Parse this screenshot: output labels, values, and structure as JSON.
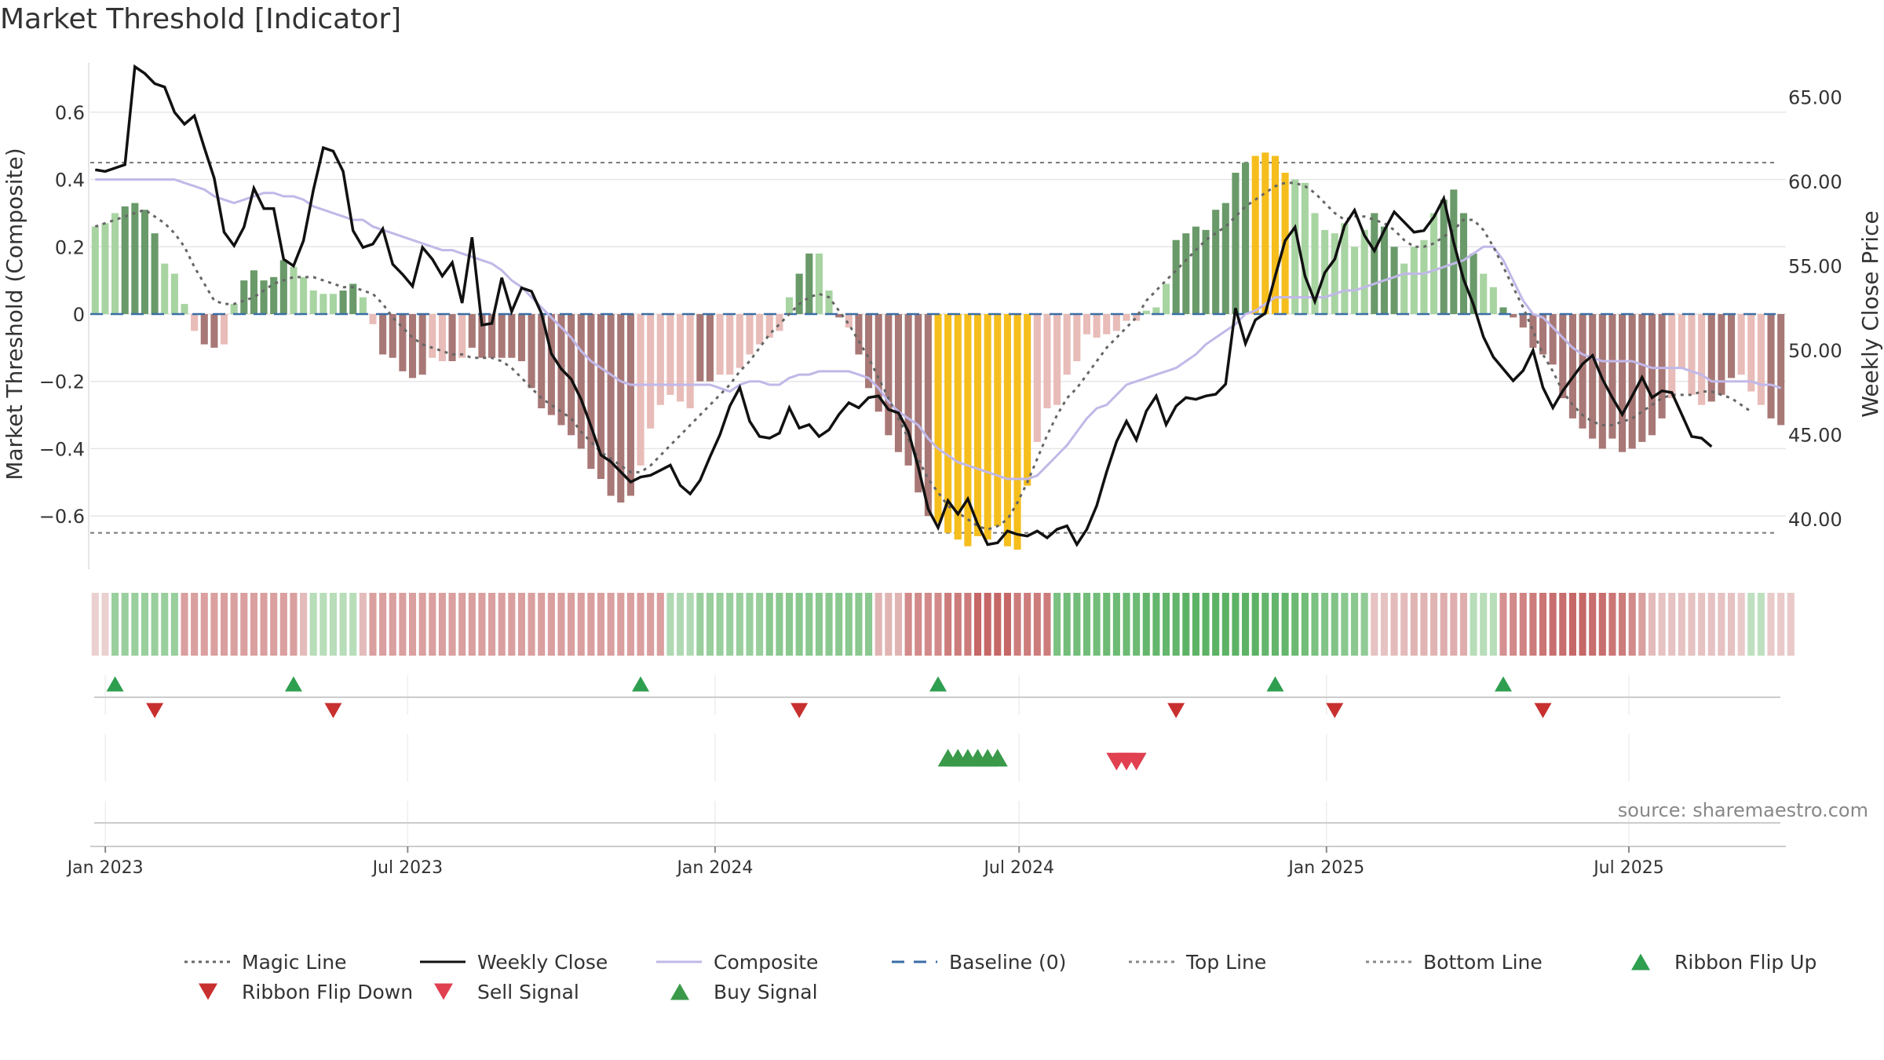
{
  "title": "Market Threshold [Indicator]",
  "source": "source: sharemaestro.com",
  "colors": {
    "bar_pos_strong": "#6a9a6a",
    "bar_pos_weak": "#a8d4a2",
    "bar_neg_strong": "#a87876",
    "bar_neg_weak": "#e8bcb8",
    "bar_extreme": "#f5be1d",
    "close": "#111111",
    "composite": "#c1b8e8",
    "magic": "#666666",
    "baseline": "#3a6ea5",
    "threshold": "#777777",
    "signal_up": "#2e9e4f",
    "signal_down": "#d63a3a"
  },
  "chart_data": {
    "type": "bar",
    "title": "Market Threshold [Indicator]",
    "ylabel": "Market Threshold (Composite)",
    "y2label": "Weekly Close Price",
    "ylim": [
      -0.77,
      0.77
    ],
    "y2lim": [
      36.8,
      67.5
    ],
    "yticks": [
      {
        "v": 0.6,
        "label": "0.6"
      },
      {
        "v": 0.4,
        "label": "0.4"
      },
      {
        "v": 0.2,
        "label": "0.2"
      },
      {
        "v": 0.0,
        "label": "0"
      },
      {
        "v": -0.2,
        "label": "−0.2"
      },
      {
        "v": -0.4,
        "label": "−0.4"
      },
      {
        "v": -0.6,
        "label": "−0.6"
      }
    ],
    "y2ticks": [
      {
        "v": 65,
        "label": "65.00"
      },
      {
        "v": 60,
        "label": "60.00"
      },
      {
        "v": 55,
        "label": "55.00"
      },
      {
        "v": 50,
        "label": "50.00"
      },
      {
        "v": 45,
        "label": "45.00"
      },
      {
        "v": 40,
        "label": "40.00"
      }
    ],
    "xticks": [
      {
        "date": "2023-01-01",
        "label": "Jan 2023"
      },
      {
        "date": "2023-07-01",
        "label": "Jul 2023"
      },
      {
        "date": "2024-01-01",
        "label": "Jan 2024"
      },
      {
        "date": "2024-07-01",
        "label": "Jul 2024"
      },
      {
        "date": "2025-01-01",
        "label": "Jan 2025"
      },
      {
        "date": "2025-07-01",
        "label": "Jul 2025"
      }
    ],
    "x_start": "2022-12-23",
    "x_end": "2025-10-03",
    "top_line": 0.45,
    "bottom_line": -0.65,
    "baseline": 0,
    "bars": [
      0.26,
      0.27,
      0.3,
      0.32,
      0.33,
      0.31,
      0.24,
      0.15,
      0.12,
      0.03,
      -0.05,
      -0.09,
      -0.1,
      -0.09,
      0.03,
      0.1,
      0.13,
      0.1,
      0.11,
      0.16,
      0.14,
      0.11,
      0.07,
      0.06,
      0.06,
      0.07,
      0.09,
      0.05,
      -0.03,
      -0.12,
      -0.13,
      -0.17,
      -0.19,
      -0.18,
      -0.13,
      -0.14,
      -0.14,
      -0.13,
      -0.1,
      -0.13,
      -0.13,
      -0.13,
      -0.13,
      -0.14,
      -0.22,
      -0.28,
      -0.3,
      -0.33,
      -0.36,
      -0.4,
      -0.46,
      -0.49,
      -0.54,
      -0.56,
      -0.54,
      -0.45,
      -0.34,
      -0.27,
      -0.24,
      -0.26,
      -0.28,
      -0.2,
      -0.2,
      -0.18,
      -0.18,
      -0.16,
      -0.12,
      -0.09,
      -0.07,
      -0.05,
      0.05,
      0.12,
      0.18,
      0.18,
      0.07,
      -0.01,
      -0.04,
      -0.12,
      -0.22,
      -0.29,
      -0.36,
      -0.41,
      -0.45,
      -0.53,
      -0.6,
      -0.62,
      -0.65,
      -0.67,
      -0.69,
      -0.66,
      -0.67,
      -0.63,
      -0.69,
      -0.7,
      -0.51,
      -0.38,
      -0.28,
      -0.27,
      -0.18,
      -0.14,
      -0.06,
      -0.07,
      -0.06,
      -0.05,
      -0.02,
      -0.02,
      0.01,
      0.02,
      0.09,
      0.22,
      0.24,
      0.26,
      0.25,
      0.31,
      0.33,
      0.42,
      0.45,
      0.47,
      0.48,
      0.47,
      0.42,
      0.4,
      0.39,
      0.3,
      0.25,
      0.24,
      0.27,
      0.2,
      0.25,
      0.3,
      0.26,
      0.2,
      0.15,
      0.2,
      0.22,
      0.3,
      0.34,
      0.37,
      0.3,
      0.18,
      0.12,
      0.08,
      0.02,
      -0.01,
      -0.04,
      -0.1,
      -0.12,
      -0.15,
      -0.25,
      -0.31,
      -0.34,
      -0.37,
      -0.4,
      -0.37,
      -0.41,
      -0.4,
      -0.38,
      -0.36,
      -0.31,
      -0.25,
      -0.16,
      -0.24,
      -0.27,
      -0.26,
      -0.24,
      -0.19,
      -0.18,
      -0.23,
      -0.27,
      -0.31,
      -0.33
    ],
    "bar_colors": [
      "w",
      "w",
      "w",
      "s",
      "s",
      "s",
      "s",
      "w",
      "w",
      "w",
      "w",
      "s",
      "s",
      "w",
      "w",
      "s",
      "s",
      "s",
      "s",
      "s",
      "w",
      "w",
      "w",
      "w",
      "w",
      "s",
      "s",
      "w",
      "w",
      "s",
      "s",
      "s",
      "s",
      "s",
      "w",
      "w",
      "s",
      "w",
      "s",
      "s",
      "s",
      "s",
      "s",
      "s",
      "s",
      "s",
      "s",
      "s",
      "s",
      "s",
      "s",
      "s",
      "s",
      "s",
      "s",
      "w",
      "w",
      "w",
      "w",
      "w",
      "w",
      "s",
      "s",
      "w",
      "w",
      "w",
      "w",
      "w",
      "w",
      "w",
      "w",
      "s",
      "s",
      "w",
      "w",
      "s",
      "w",
      "s",
      "s",
      "s",
      "s",
      "s",
      "s",
      "s",
      "s",
      "x",
      "x",
      "x",
      "x",
      "x",
      "x",
      "x",
      "x",
      "x",
      "x",
      "w",
      "w",
      "w",
      "w",
      "w",
      "w",
      "w",
      "w",
      "w",
      "w",
      "w",
      "w",
      "w",
      "w",
      "s",
      "s",
      "s",
      "s",
      "s",
      "s",
      "s",
      "s",
      "x",
      "x",
      "x",
      "x",
      "w",
      "w",
      "w",
      "w",
      "w",
      "w",
      "w",
      "w",
      "s",
      "s",
      "s",
      "w",
      "w",
      "w",
      "w",
      "s",
      "s",
      "s",
      "s",
      "w",
      "w",
      "s",
      "s",
      "s",
      "s",
      "s",
      "s",
      "s",
      "s",
      "s",
      "s",
      "s",
      "s",
      "s",
      "s",
      "s",
      "s",
      "s",
      "w",
      "w",
      "w",
      "w",
      "s",
      "s",
      "s",
      "w",
      "w",
      "w",
      "s",
      "s",
      "s"
    ],
    "close": [
      60.7,
      60.6,
      60.8,
      61.0,
      66.8,
      66.4,
      65.8,
      65.6,
      64.1,
      63.4,
      63.9,
      62.0,
      60.2,
      57.0,
      56.2,
      57.3,
      59.6,
      58.4,
      58.4,
      55.4,
      55.0,
      56.5,
      59.5,
      62.0,
      61.8,
      60.6,
      57.1,
      56.1,
      56.3,
      57.2,
      55.1,
      54.5,
      53.8,
      56.1,
      55.4,
      54.4,
      55.2,
      52.8,
      56.7,
      51.5,
      51.6,
      54.3,
      52.3,
      53.7,
      53.5,
      52.2,
      49.8,
      48.9,
      48.3,
      47.1,
      45.5,
      43.8,
      43.4,
      42.8,
      42.2,
      42.5,
      42.6,
      42.9,
      43.2,
      42.0,
      41.5,
      42.3,
      43.7,
      45.0,
      46.7,
      47.8,
      45.8,
      44.9,
      44.8,
      45.1,
      46.6,
      45.4,
      45.6,
      44.9,
      45.3,
      46.2,
      46.9,
      46.6,
      47.2,
      47.3,
      46.5,
      46.3,
      45.2,
      43.1,
      40.6,
      39.5,
      41.1,
      40.3,
      41.2,
      39.7,
      38.5,
      38.6,
      39.3,
      39.1,
      39.0,
      39.3,
      38.9,
      39.4,
      39.6,
      38.5,
      39.4,
      40.8,
      42.8,
      44.6,
      45.8,
      44.7,
      46.4,
      47.3,
      45.6,
      46.7,
      47.2,
      47.1,
      47.3,
      47.4,
      48.0,
      52.5,
      50.4,
      51.8,
      52.2,
      54.4,
      56.5,
      57.3,
      54.4,
      52.9,
      54.6,
      55.4,
      57.4,
      58.3,
      56.8,
      55.9,
      57.1,
      58.2,
      57.6,
      57.0,
      57.1,
      57.9,
      59.0,
      56.4,
      54.2,
      52.7,
      50.8,
      49.6,
      48.9,
      48.2,
      48.8,
      50.0,
      47.8,
      46.6,
      47.6,
      48.4,
      49.2,
      49.7,
      48.3,
      47.2,
      46.2,
      47.3,
      48.4,
      47.2,
      47.6,
      47.5,
      46.2,
      44.9,
      44.8,
      44.3
    ],
    "composite": [
      0.4,
      0.4,
      0.4,
      0.4,
      0.4,
      0.4,
      0.4,
      0.4,
      0.4,
      0.39,
      0.38,
      0.37,
      0.35,
      0.34,
      0.33,
      0.34,
      0.35,
      0.36,
      0.36,
      0.35,
      0.35,
      0.34,
      0.32,
      0.31,
      0.3,
      0.29,
      0.28,
      0.28,
      0.26,
      0.25,
      0.24,
      0.23,
      0.22,
      0.21,
      0.2,
      0.19,
      0.19,
      0.18,
      0.17,
      0.16,
      0.15,
      0.13,
      0.1,
      0.08,
      0.05,
      0.02,
      -0.01,
      -0.04,
      -0.07,
      -0.11,
      -0.14,
      -0.16,
      -0.18,
      -0.2,
      -0.21,
      -0.21,
      -0.21,
      -0.21,
      -0.21,
      -0.21,
      -0.21,
      -0.21,
      -0.21,
      -0.22,
      -0.23,
      -0.21,
      -0.2,
      -0.2,
      -0.21,
      -0.21,
      -0.19,
      -0.18,
      -0.18,
      -0.17,
      -0.17,
      -0.17,
      -0.17,
      -0.18,
      -0.19,
      -0.22,
      -0.26,
      -0.29,
      -0.31,
      -0.33,
      -0.37,
      -0.4,
      -0.42,
      -0.44,
      -0.45,
      -0.46,
      -0.47,
      -0.48,
      -0.49,
      -0.49,
      -0.49,
      -0.48,
      -0.45,
      -0.42,
      -0.39,
      -0.35,
      -0.31,
      -0.28,
      -0.27,
      -0.24,
      -0.21,
      -0.2,
      -0.19,
      -0.18,
      -0.17,
      -0.16,
      -0.14,
      -0.12,
      -0.09,
      -0.07,
      -0.05,
      -0.03,
      0.0,
      0.01,
      0.03,
      0.05,
      0.05,
      0.05,
      0.05,
      0.05,
      0.05,
      0.06,
      0.07,
      0.07,
      0.08,
      0.09,
      0.1,
      0.11,
      0.12,
      0.12,
      0.12,
      0.13,
      0.14,
      0.15,
      0.16,
      0.18,
      0.2,
      0.2,
      0.16,
      0.1,
      0.04,
      0.0,
      -0.01,
      -0.04,
      -0.07,
      -0.1,
      -0.12,
      -0.13,
      -0.14,
      -0.14,
      -0.14,
      -0.14,
      -0.15,
      -0.16,
      -0.16,
      -0.16,
      -0.16,
      -0.17,
      -0.18,
      -0.2,
      -0.2,
      -0.2,
      -0.2,
      -0.2,
      -0.21,
      -0.21,
      -0.22
    ],
    "magic": [
      0.26,
      0.27,
      0.28,
      0.29,
      0.3,
      0.31,
      0.29,
      0.27,
      0.24,
      0.2,
      0.14,
      0.09,
      0.04,
      0.03,
      0.03,
      0.04,
      0.05,
      0.07,
      0.09,
      0.1,
      0.11,
      0.11,
      0.11,
      0.1,
      0.09,
      0.08,
      0.08,
      0.07,
      0.06,
      0.03,
      -0.01,
      -0.04,
      -0.07,
      -0.09,
      -0.1,
      -0.11,
      -0.12,
      -0.12,
      -0.13,
      -0.13,
      -0.13,
      -0.14,
      -0.16,
      -0.19,
      -0.22,
      -0.25,
      -0.27,
      -0.29,
      -0.31,
      -0.35,
      -0.38,
      -0.41,
      -0.43,
      -0.45,
      -0.47,
      -0.47,
      -0.45,
      -0.42,
      -0.39,
      -0.36,
      -0.33,
      -0.3,
      -0.27,
      -0.24,
      -0.21,
      -0.17,
      -0.14,
      -0.1,
      -0.06,
      -0.03,
      0.0,
      0.03,
      0.05,
      0.06,
      0.05,
      0.01,
      -0.03,
      -0.08,
      -0.13,
      -0.19,
      -0.25,
      -0.31,
      -0.37,
      -0.43,
      -0.49,
      -0.53,
      -0.57,
      -0.59,
      -0.61,
      -0.63,
      -0.64,
      -0.63,
      -0.61,
      -0.56,
      -0.5,
      -0.43,
      -0.36,
      -0.3,
      -0.25,
      -0.22,
      -0.18,
      -0.14,
      -0.1,
      -0.07,
      -0.04,
      -0.01,
      0.04,
      0.07,
      0.1,
      0.13,
      0.16,
      0.19,
      0.22,
      0.24,
      0.26,
      0.29,
      0.32,
      0.34,
      0.36,
      0.38,
      0.39,
      0.39,
      0.38,
      0.36,
      0.33,
      0.3,
      0.28,
      0.29,
      0.29,
      0.28,
      0.27,
      0.25,
      0.22,
      0.2,
      0.2,
      0.21,
      0.23,
      0.25,
      0.28,
      0.28,
      0.25,
      0.2,
      0.14,
      0.08,
      0.02,
      -0.05,
      -0.12,
      -0.17,
      -0.23,
      -0.27,
      -0.3,
      -0.32,
      -0.33,
      -0.33,
      -0.32,
      -0.31,
      -0.29,
      -0.27,
      -0.25,
      -0.24,
      -0.24,
      -0.24,
      -0.23,
      -0.23,
      -0.24,
      -0.25,
      -0.27,
      -0.29
    ],
    "ribbon": [
      -0.1,
      -0.1,
      0.45,
      0.45,
      0.45,
      0.45,
      0.45,
      0.45,
      0.45,
      -0.45,
      -0.45,
      -0.45,
      -0.45,
      -0.45,
      -0.45,
      -0.45,
      -0.45,
      -0.45,
      -0.45,
      -0.45,
      -0.45,
      -0.25,
      0.25,
      0.25,
      0.25,
      0.25,
      0.25,
      -0.25,
      -0.45,
      -0.45,
      -0.45,
      -0.45,
      -0.45,
      -0.45,
      -0.45,
      -0.45,
      -0.45,
      -0.45,
      -0.45,
      -0.45,
      -0.45,
      -0.45,
      -0.45,
      -0.45,
      -0.45,
      -0.45,
      -0.45,
      -0.45,
      -0.45,
      -0.45,
      -0.45,
      -0.45,
      -0.45,
      -0.45,
      -0.45,
      -0.45,
      -0.45,
      -0.45,
      0.3,
      0.3,
      0.3,
      0.45,
      0.45,
      0.45,
      0.45,
      0.45,
      0.45,
      0.45,
      0.55,
      0.55,
      0.55,
      0.55,
      0.55,
      0.55,
      0.55,
      0.55,
      0.55,
      0.55,
      0.55,
      -0.3,
      -0.3,
      -0.3,
      -0.6,
      -0.6,
      -0.6,
      -0.6,
      -0.7,
      -0.7,
      -0.7,
      -0.85,
      -0.85,
      -0.85,
      -0.85,
      -0.7,
      -0.7,
      -0.7,
      -0.7,
      0.65,
      0.7,
      0.7,
      0.7,
      0.7,
      0.75,
      0.75,
      0.75,
      0.75,
      0.8,
      0.8,
      0.8,
      0.8,
      0.85,
      0.85,
      0.85,
      0.85,
      0.85,
      0.85,
      0.85,
      0.85,
      0.8,
      0.8,
      0.8,
      0.75,
      0.7,
      0.65,
      0.6,
      0.6,
      0.55,
      0.55,
      0.5,
      -0.2,
      -0.2,
      -0.25,
      -0.25,
      -0.3,
      -0.3,
      -0.3,
      -0.35,
      -0.35,
      -0.35,
      0.25,
      0.25,
      0.25,
      -0.55,
      -0.6,
      -0.65,
      -0.7,
      -0.75,
      -0.8,
      -0.8,
      -0.85,
      -0.85,
      -0.8,
      -0.8,
      -0.75,
      -0.7,
      -0.6,
      -0.45,
      -0.25,
      -0.2,
      -0.2,
      -0.2,
      -0.2,
      -0.2,
      -0.2,
      -0.2,
      -0.2,
      -0.15,
      0.2,
      0.2,
      -0.15,
      -0.15,
      -0.15
    ],
    "ribbon_flip_up": [
      2,
      20,
      55,
      85,
      119,
      142
    ],
    "ribbon_flip_down": [
      6,
      24,
      71,
      109,
      125,
      146
    ],
    "buy_signal": [
      86,
      87,
      88,
      89,
      90,
      91
    ],
    "sell_signal": [
      103,
      104,
      105
    ],
    "legend": [
      {
        "label": "Magic Line",
        "kind": "dotted",
        "color": "#666666"
      },
      {
        "label": "Weekly Close",
        "kind": "solid",
        "color": "#111111"
      },
      {
        "label": "Composite",
        "kind": "solid",
        "color": "#c1b8e8"
      },
      {
        "label": "Baseline (0)",
        "kind": "dashed",
        "color": "#3a6ea5"
      },
      {
        "label": "Top Line",
        "kind": "dotted",
        "color": "#888888"
      },
      {
        "label": "Bottom Line",
        "kind": "dotted",
        "color": "#888888"
      },
      {
        "label": "Ribbon Flip Up",
        "kind": "tri-up",
        "color": "#2e9e4f"
      },
      {
        "label": "Ribbon Flip Down",
        "kind": "tri-down",
        "color": "#c83030"
      },
      {
        "label": "Sell Signal",
        "kind": "tri-down",
        "color": "#e04050"
      },
      {
        "label": "Buy Signal",
        "kind": "tri-up",
        "color": "#3a9a4a"
      }
    ]
  }
}
